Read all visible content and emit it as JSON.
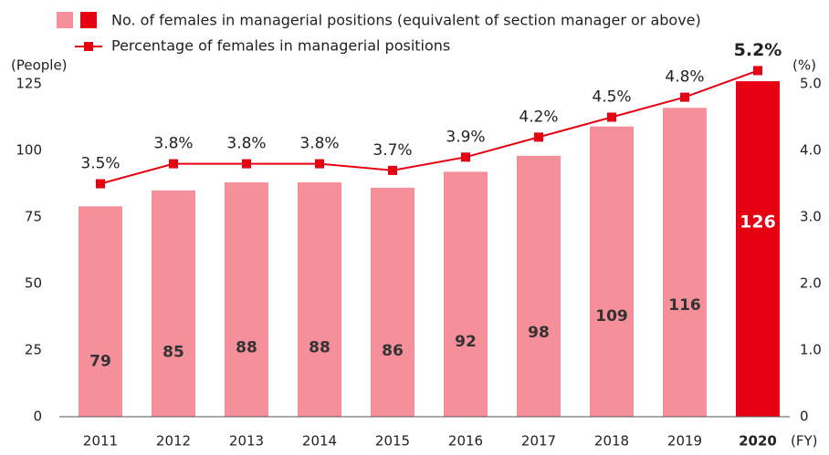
{
  "chart_data": {
    "type": "bar-line",
    "categories": [
      "2011",
      "2012",
      "2013",
      "2014",
      "2015",
      "2016",
      "2017",
      "2018",
      "2019",
      "2020"
    ],
    "series": [
      {
        "name": "No. of females in managerial positions (equivalent of section manager or above)",
        "type": "bar",
        "colors": [
          "#f5909b",
          "#f5909b",
          "#f5909b",
          "#f5909b",
          "#f5909b",
          "#f5909b",
          "#f5909b",
          "#f5909b",
          "#f5909b",
          "#e60012"
        ],
        "values": [
          79,
          85,
          88,
          88,
          86,
          92,
          98,
          109,
          116,
          126
        ]
      },
      {
        "name": "Percentage of females in managerial positions",
        "type": "line",
        "axis": "y2",
        "color": "#e60012",
        "values": [
          3.5,
          3.8,
          3.8,
          3.8,
          3.7,
          3.9,
          4.2,
          4.5,
          4.8,
          5.2
        ],
        "value_labels": [
          "3.5%",
          "3.8%",
          "3.8%",
          "3.8%",
          "3.7%",
          "3.9%",
          "4.2%",
          "4.5%",
          "4.8%",
          "5.2%"
        ]
      }
    ],
    "ylabel": "(People)",
    "y2label": "(%)",
    "xlabel": "(FY)",
    "ylim": [
      0,
      125
    ],
    "yticks": [
      0,
      25,
      50,
      75,
      100,
      125
    ],
    "y2lim": [
      0,
      5
    ],
    "y2ticks": [
      0,
      {
        "value": 1,
        "label": "1.0"
      },
      {
        "value": 2,
        "label": "2.0"
      },
      {
        "value": 3,
        "label": "3.0"
      },
      {
        "value": 4,
        "label": "4.0"
      },
      {
        "value": 5,
        "label": "5.0"
      }
    ],
    "grid": false
  }
}
